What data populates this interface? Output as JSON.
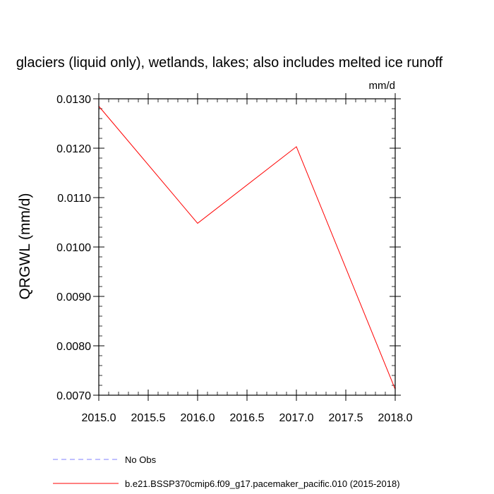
{
  "chart_data": {
    "type": "line",
    "title": "glaciers (liquid only), wetlands, lakes; also includes melted ice runoff",
    "units_label": "mm/d",
    "ylabel": "QRGWL  (mm/d)",
    "xlim": [
      2015.0,
      2018.0
    ],
    "ylim": [
      0.007,
      0.013
    ],
    "x_ticks": [
      2015.0,
      2015.5,
      2016.0,
      2016.5,
      2017.0,
      2017.5,
      2018.0
    ],
    "x_tick_labels": [
      "2015.0",
      "2015.5",
      "2016.0",
      "2016.5",
      "2017.0",
      "2017.5",
      "2018.0"
    ],
    "y_ticks": [
      0.007,
      0.008,
      0.009,
      0.01,
      0.011,
      0.012,
      0.013
    ],
    "y_tick_labels": [
      "0.0070",
      "0.0080",
      "0.0090",
      "0.0100",
      "0.0110",
      "0.0120",
      "0.0130"
    ],
    "grid": false,
    "legend_position": "bottom",
    "series": [
      {
        "name": "No Obs",
        "color": "#8080ff",
        "dash": "dashed",
        "x": [],
        "y": []
      },
      {
        "name": "b.e21.BSSP370cmip6.f09_g17.pacemaker_pacific.010 (2015-2018)",
        "color": "#ff0000",
        "dash": "solid",
        "x": [
          2015.0,
          2016.0,
          2017.0,
          2018.0
        ],
        "y": [
          0.01285,
          0.01048,
          0.01203,
          0.00712
        ]
      }
    ]
  }
}
